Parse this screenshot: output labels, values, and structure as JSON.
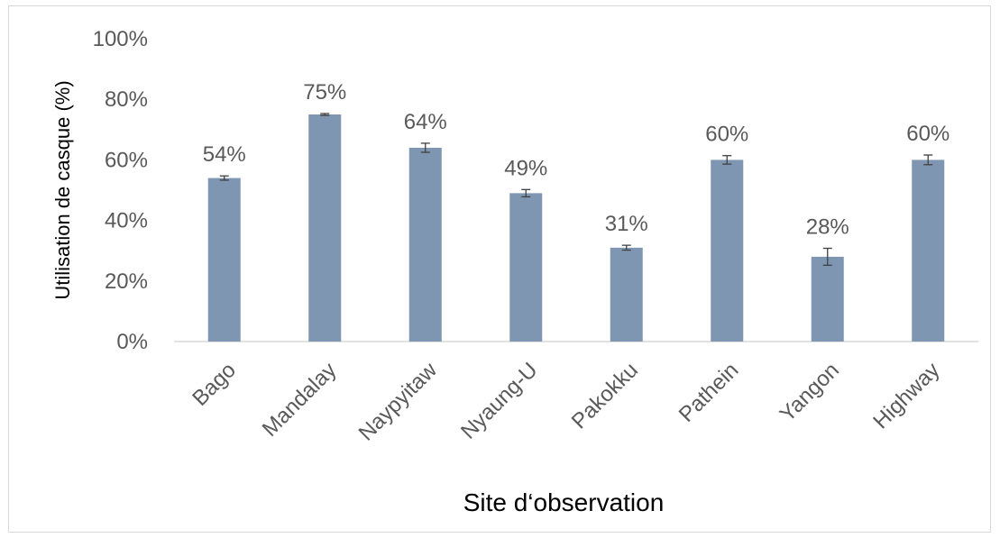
{
  "chart_data": {
    "type": "bar",
    "categories": [
      "Bago",
      "Mandalay",
      "Naypyitaw",
      "Nyaung-U",
      "Pakokku",
      "Pathein",
      "Yangon",
      "Highway"
    ],
    "values": [
      54,
      75,
      64,
      49,
      31,
      60,
      28,
      60
    ],
    "error_bars": [
      0.7,
      0.3,
      1.5,
      1.2,
      0.8,
      1.4,
      2.8,
      1.6
    ],
    "data_labels": [
      "54%",
      "75%",
      "64%",
      "49%",
      "31%",
      "60%",
      "28%",
      "60%"
    ],
    "ylim": [
      0,
      100
    ],
    "yticks": [
      0,
      20,
      40,
      60,
      80,
      100
    ],
    "ytick_labels": [
      "0%",
      "20%",
      "40%",
      "60%",
      "80%",
      "100%"
    ],
    "xlabel": "Site d‘observation",
    "ylabel": "Utilisation de casque  (%)",
    "bar_color": "#7f96b2",
    "grid": false,
    "legend": "none"
  }
}
